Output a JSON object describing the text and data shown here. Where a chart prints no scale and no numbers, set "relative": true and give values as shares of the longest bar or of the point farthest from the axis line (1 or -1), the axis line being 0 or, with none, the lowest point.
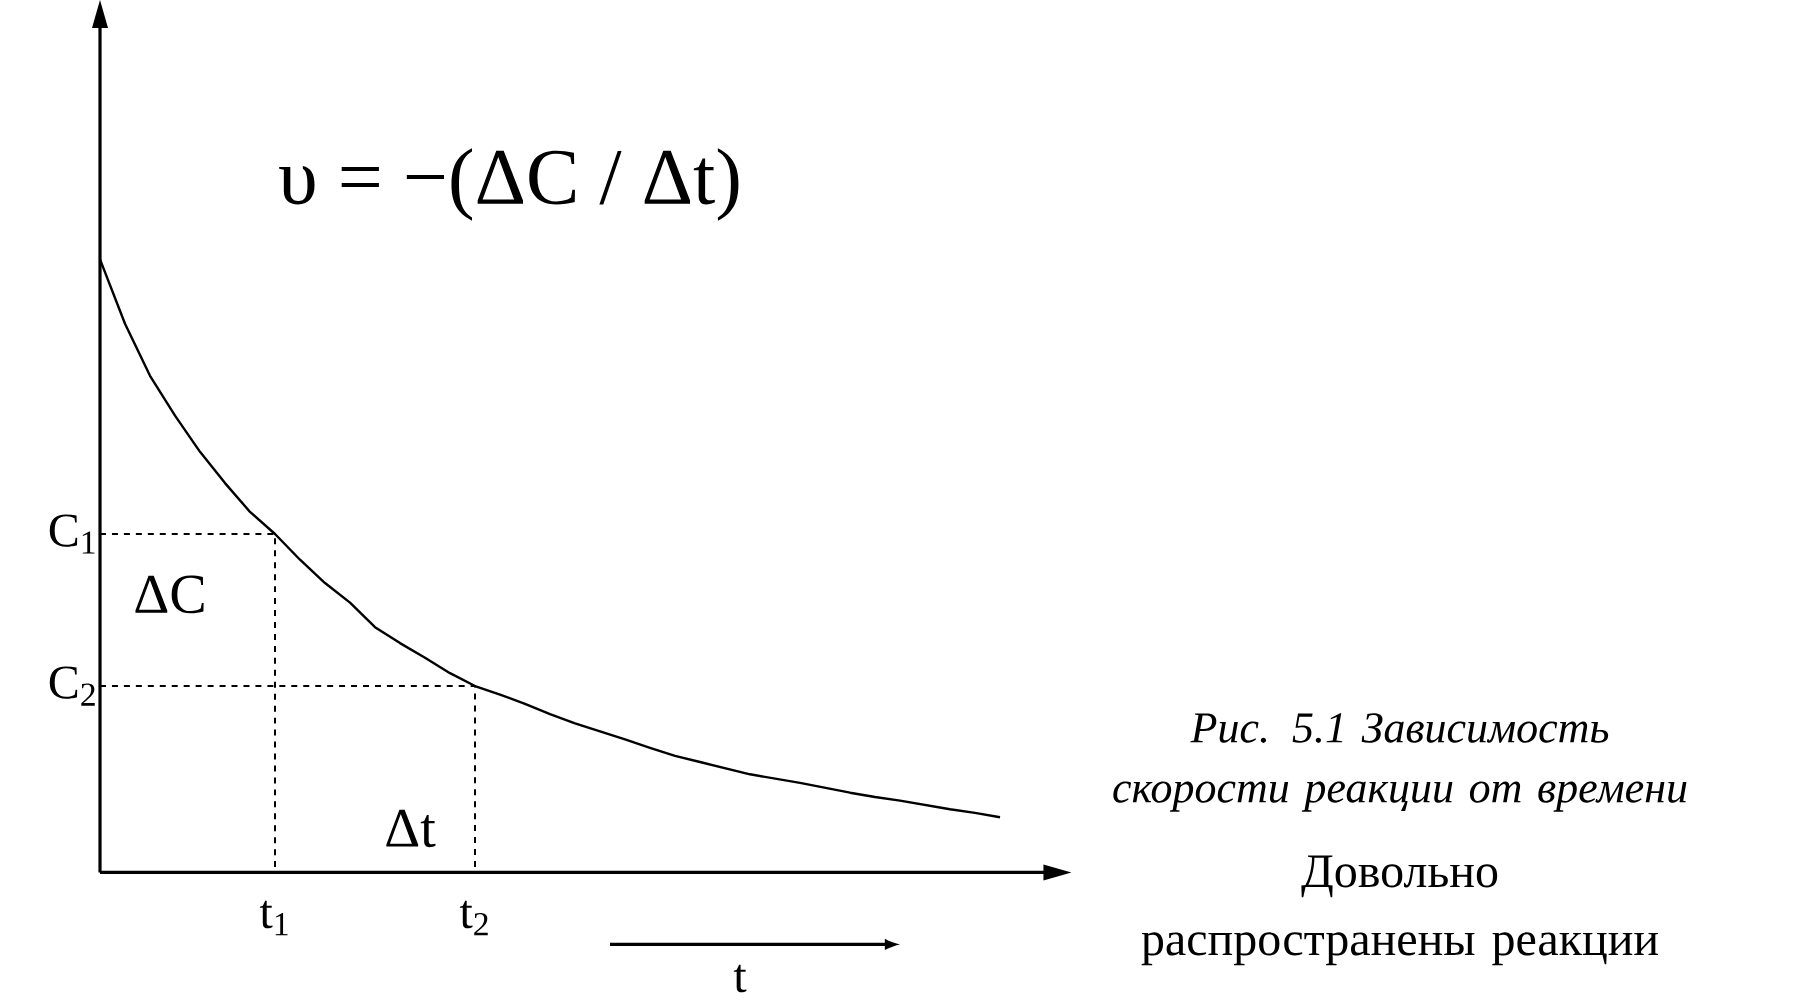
{
  "chart_data": {
    "type": "line",
    "relative": true,
    "title": "Рис. 5.1 Зависимость скорости реакции от времени",
    "xlabel": "t",
    "categories": [
      null,
      null,
      null,
      null,
      null,
      null,
      null,
      "t$_{1}$",
      null,
      null,
      null,
      null,
      null,
      null,
      null,
      "t$_{2}$",
      null,
      null,
      null,
      null,
      null,
      null,
      null,
      null,
      null,
      null,
      null,
      null,
      null,
      null,
      null,
      null,
      null,
      null,
      null,
      null,
      null
    ],
    "values": [
      1,
      0.895,
      0.81,
      0.745,
      0.686,
      0.635,
      0.588,
      0.552,
      0.51,
      0.472,
      0.44,
      0.4,
      0.374,
      0.35,
      0.325,
      0.304,
      0.29,
      0.275,
      0.258,
      0.243,
      0.23,
      0.217,
      0.203,
      0.19,
      0.18,
      0.17,
      0.16,
      0.153,
      0.146,
      0.138,
      0.13,
      0.123,
      0.117,
      0.11,
      0.103,
      0.097,
      0.09
    ],
    "color": "#000000",
    "line_style": "solid",
    "marker": "none",
    "ref_lines": [
      {
        "axis": "y",
        "value": 0.552,
        "label": "C$_{1}$",
        "line_style": "dashed"
      },
      {
        "axis": "y",
        "value": 0.304,
        "label": "C$_{2}$",
        "line_style": "dashed"
      }
    ],
    "annotations": [
      "υ = −(ΔC / Δt)",
      "ΔC",
      "Δt",
      "Довольно распространены реакции"
    ]
  }
}
